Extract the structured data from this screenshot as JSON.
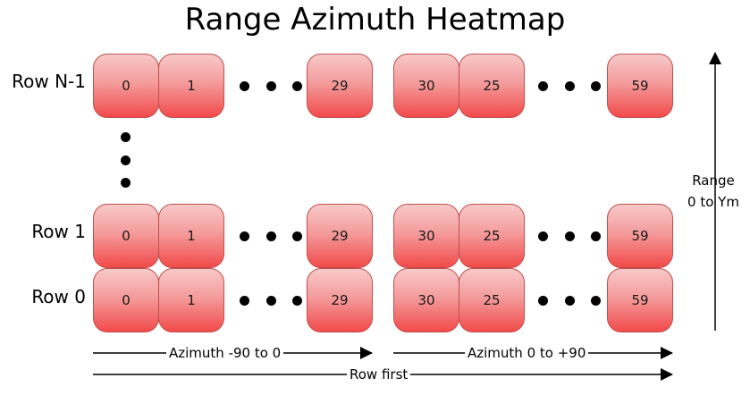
{
  "title": "Range Azimuth Heatmap",
  "rows": [
    {
      "label": "Row N-1",
      "cells": [
        "0",
        "1",
        "29",
        "30",
        "25",
        "59"
      ]
    },
    {
      "label": "Row 1",
      "cells": [
        "0",
        "1",
        "29",
        "30",
        "25",
        "59"
      ]
    },
    {
      "label": "Row 0",
      "cells": [
        "0",
        "1",
        "29",
        "30",
        "25",
        "59"
      ]
    }
  ],
  "range_label": {
    "line1": "Range",
    "line2": "0 to Ym"
  },
  "azimuth_left_label": "Azimuth -90 to 0",
  "azimuth_right_label": "Azimuth 0 to +90",
  "row_first_label": "Row first"
}
